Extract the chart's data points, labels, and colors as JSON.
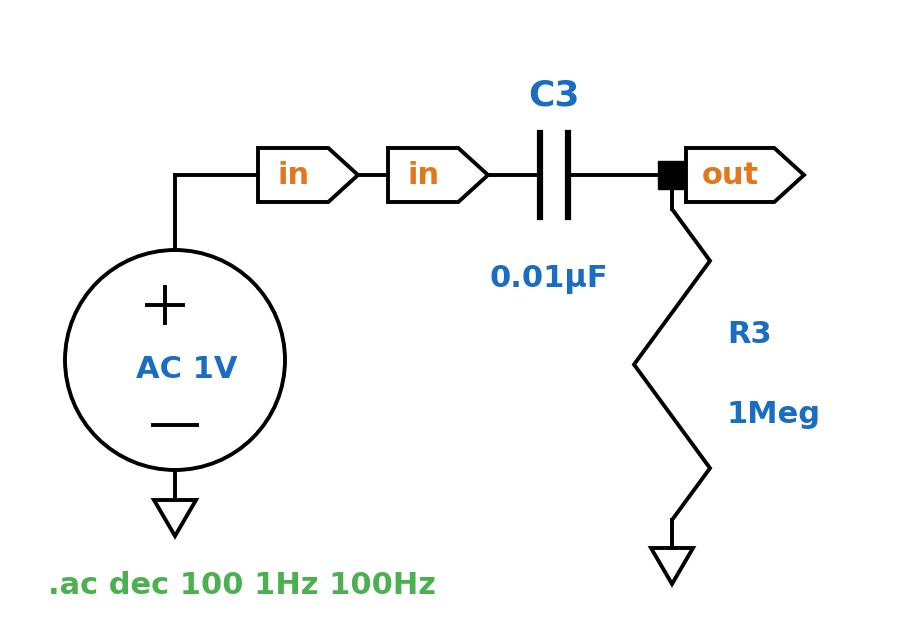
{
  "bg_color": "#ffffff",
  "blue": "#1a6dc0",
  "orange": "#e07820",
  "green": "#4db050",
  "black": "#000000",
  "ac_label": ".ac dec 100 1Hz 100Hz",
  "c3_label": "C3",
  "cap_label": "0.01μF",
  "r3_label": "R3",
  "meg_label": "1Meg",
  "ac_voltage": "AC 1V",
  "in_label": "in",
  "out_label": "out",
  "lw": 2.8
}
